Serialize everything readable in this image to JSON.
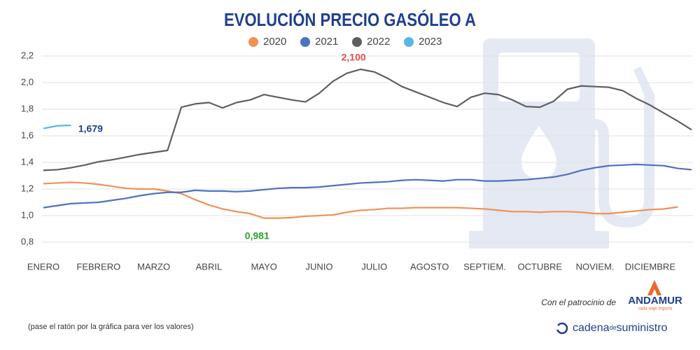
{
  "chart_data": {
    "type": "line",
    "title": "EVOLUCIÓN PRECIO GASÓLEO A",
    "categories": [
      "ENERO",
      null,
      null,
      null,
      "FEBRERO",
      null,
      null,
      null,
      "MARZO",
      null,
      null,
      null,
      "ABRIL",
      null,
      null,
      null,
      "MAYO",
      null,
      null,
      null,
      "JUNIO",
      null,
      null,
      null,
      "JULIO",
      null,
      null,
      null,
      "AGOSTO",
      null,
      null,
      null,
      "SEPTIEM.",
      null,
      null,
      null,
      "OCTUBRE",
      null,
      null,
      null,
      "NOVIEM.",
      null,
      null,
      null,
      "DICIEMBRE",
      null,
      null,
      null
    ],
    "series": [
      {
        "name": "2020",
        "color": "#f0915a",
        "values": [
          1.24,
          1.245,
          1.25,
          1.245,
          1.235,
          1.22,
          1.205,
          1.2,
          1.2,
          1.185,
          1.165,
          1.12,
          1.08,
          1.05,
          1.03,
          1.015,
          0.981,
          0.981,
          0.985,
          0.995,
          1.0,
          1.005,
          1.025,
          1.04,
          1.045,
          1.055,
          1.055,
          1.06,
          1.06,
          1.06,
          1.06,
          1.055,
          1.05,
          1.04,
          1.03,
          1.03,
          1.025,
          1.03,
          1.03,
          1.025,
          1.015,
          1.015,
          1.025,
          1.035,
          1.045,
          1.05,
          1.065,
          null
        ],
        "value_labels": [
          null,
          null,
          null,
          null,
          null,
          null,
          null,
          null,
          null,
          null,
          null,
          null,
          null,
          null,
          null,
          null,
          "0,981",
          null,
          null,
          null,
          null,
          null,
          null,
          null,
          null,
          null,
          null,
          null,
          null,
          null,
          null,
          null,
          null,
          null,
          null,
          null,
          null,
          null,
          null,
          null,
          null,
          null,
          null,
          null,
          null,
          null,
          null,
          null
        ],
        "label_color": "#2ca02c"
      },
      {
        "name": "2021",
        "color": "#4f72be",
        "values": [
          1.06,
          1.075,
          1.09,
          1.095,
          1.1,
          1.115,
          1.13,
          1.15,
          1.165,
          1.175,
          1.175,
          1.19,
          1.185,
          1.185,
          1.18,
          1.185,
          1.195,
          1.205,
          1.21,
          1.21,
          1.215,
          1.225,
          1.235,
          1.245,
          1.25,
          1.255,
          1.265,
          1.27,
          1.265,
          1.26,
          1.27,
          1.27,
          1.26,
          1.26,
          1.265,
          1.27,
          1.28,
          1.29,
          1.31,
          1.34,
          1.36,
          1.375,
          1.38,
          1.385,
          1.38,
          1.375,
          1.355,
          1.345
        ]
      },
      {
        "name": "2022",
        "color": "#5f5f5f",
        "values": [
          1.34,
          1.345,
          1.36,
          1.38,
          1.405,
          1.42,
          1.44,
          1.46,
          1.475,
          1.49,
          1.815,
          1.84,
          1.85,
          1.81,
          1.85,
          1.87,
          1.91,
          1.89,
          1.87,
          1.855,
          1.92,
          2.01,
          2.07,
          2.1,
          2.08,
          2.03,
          1.97,
          1.93,
          1.89,
          1.85,
          1.82,
          1.89,
          1.92,
          1.91,
          1.87,
          1.82,
          1.815,
          1.86,
          1.95,
          1.975,
          1.97,
          1.965,
          1.94,
          1.88,
          1.83,
          1.77,
          1.71,
          1.645
        ],
        "value_labels": [
          null,
          null,
          null,
          null,
          null,
          null,
          null,
          null,
          null,
          null,
          null,
          null,
          null,
          null,
          null,
          null,
          null,
          null,
          null,
          null,
          null,
          null,
          null,
          "2,100",
          null,
          null,
          null,
          null,
          null,
          null,
          null,
          null,
          null,
          null,
          null,
          null,
          null,
          null,
          null,
          null,
          null,
          null,
          null,
          null,
          null,
          null,
          null,
          null
        ],
        "label_color": "#d9534f"
      },
      {
        "name": "2023",
        "color": "#5bb5e6",
        "values": [
          1.655,
          1.675,
          1.679,
          null,
          null,
          null,
          null,
          null,
          null,
          null,
          null,
          null,
          null,
          null,
          null,
          null,
          null,
          null,
          null,
          null,
          null,
          null,
          null,
          null,
          null,
          null,
          null,
          null,
          null,
          null,
          null,
          null,
          null,
          null,
          null,
          null,
          null,
          null,
          null,
          null,
          null,
          null,
          null,
          null,
          null,
          null,
          null,
          null
        ],
        "value_labels": [
          null,
          null,
          "1,679",
          null,
          null,
          null,
          null,
          null,
          null,
          null,
          null,
          null,
          null,
          null,
          null,
          null,
          null,
          null,
          null,
          null,
          null,
          null,
          null,
          null,
          null,
          null,
          null,
          null,
          null,
          null,
          null,
          null,
          null,
          null,
          null,
          null,
          null,
          null,
          null,
          null,
          null,
          null,
          null,
          null,
          null,
          null,
          null,
          null
        ],
        "label_color": "#1f3f8f"
      }
    ],
    "ylim": [
      0.8,
      2.2
    ],
    "yticks": [
      {
        "value": 0.8,
        "label": "0,8"
      },
      {
        "value": 1.0,
        "label": "1,0"
      },
      {
        "value": 1.2,
        "label": "1,2"
      },
      {
        "value": 1.4,
        "label": "1,4"
      },
      {
        "value": 1.6,
        "label": "1,6"
      },
      {
        "value": 1.8,
        "label": "1,8"
      },
      {
        "value": 2.0,
        "label": "2,0"
      },
      {
        "value": 2.2,
        "label": "2,2"
      }
    ],
    "grid": true
  },
  "footer": {
    "hint": "(pase el ratón por la gráfica para ver los valores)",
    "sponsor": "Con el patrocinio de",
    "brand": "ANDAMUR",
    "brand_tagline": "cada viaje importa",
    "publisher_a": "cadena",
    "publisher_b": "de",
    "publisher_c": "suministro"
  }
}
